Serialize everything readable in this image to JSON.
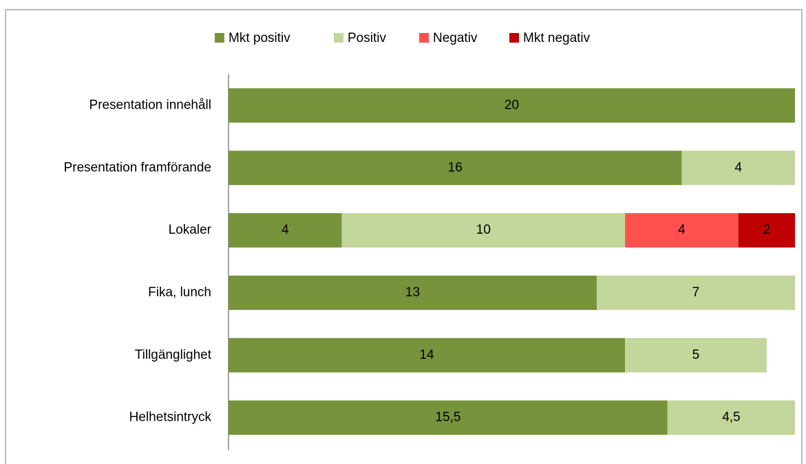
{
  "chart_data": {
    "type": "stacked_barh",
    "categories": [
      "Presentation innehåll",
      "Presentation framförande",
      "Lokaler",
      "Fika, lunch",
      "Tillgänglighet",
      "Helhetsintryck"
    ],
    "series": [
      {
        "name": "Mkt positiv",
        "color": "#77933c",
        "values": [
          20,
          16,
          4,
          13,
          14,
          15.5
        ],
        "value_labels": [
          null,
          null,
          null,
          null,
          null,
          "15,5"
        ]
      },
      {
        "name": "Positiv",
        "color": "#c3d69b",
        "values": [
          null,
          4,
          10,
          7,
          5,
          4.5
        ],
        "value_labels": [
          null,
          null,
          null,
          null,
          null,
          "4,5"
        ]
      },
      {
        "name": "Negativ",
        "color": "#ff5050",
        "values": [
          null,
          null,
          4,
          null,
          null,
          null
        ]
      },
      {
        "name": "Mkt negativ",
        "color": "#c00000",
        "values": [
          null,
          null,
          2,
          null,
          null,
          null
        ]
      }
    ],
    "xlim": [
      0,
      20
    ],
    "legend": "top"
  }
}
